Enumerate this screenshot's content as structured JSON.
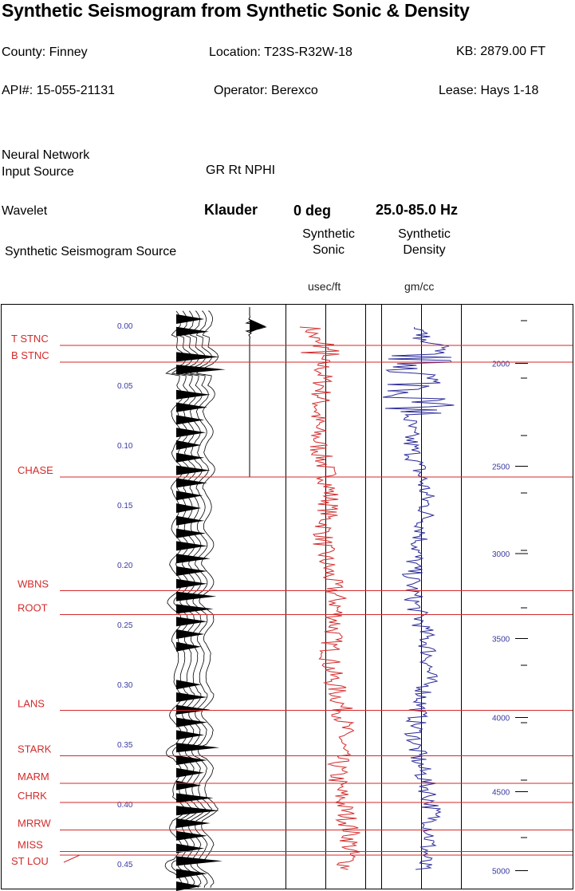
{
  "header": {
    "title": "Synthetic Seismogram from Synthetic Sonic & Density",
    "county": "County: Finney",
    "location": "Location: T23S-R32W-18",
    "kb": "KB: 2879.00 FT",
    "api": "API#: 15-055-21131",
    "operator": "Operator: Berexco",
    "lease": "Lease: Hays 1-18",
    "nn_label_1": "Neural Network",
    "nn_label_2": "Input Source",
    "nn_value": "GR Rt NPHI",
    "wavelet_label": "Wavelet",
    "wavelet_type": "Klauder",
    "wavelet_phase": "0 deg",
    "wavelet_band": "25.0-85.0 Hz",
    "source_label": "Synthetic Seismogram Source",
    "sonic_title_1": "Synthetic",
    "sonic_title_2": "Sonic",
    "density_title_1": "Synthetic",
    "density_title_2": "Density",
    "sonic_unit": "usec/ft",
    "density_unit": "gm/cc"
  },
  "colors": {
    "tops": "#d42a2a",
    "sonic": "#d42a2a",
    "density": "#2a2a9a",
    "time_labels": "#3a3aa0",
    "depth_labels": "#3a3aa0"
  },
  "chart_data": {
    "type": "line",
    "time_ticks": [
      "0.00",
      "0.05",
      "0.10",
      "0.15",
      "0.20",
      "0.25",
      "0.30",
      "0.35",
      "0.40",
      "0.45"
    ],
    "time_values": [
      0.0,
      0.05,
      0.1,
      0.15,
      0.2,
      0.25,
      0.3,
      0.35,
      0.4,
      0.45
    ],
    "depth_ticks": [
      "2000",
      "2500",
      "3000",
      "3500",
      "4000",
      "4500",
      "5000"
    ],
    "depth_times": [
      0.031,
      0.117,
      0.19,
      0.261,
      0.327,
      0.389,
      0.455
    ],
    "formation_tops": [
      {
        "name": "T STNC",
        "t": 0.016
      },
      {
        "name": "B STNC",
        "t": 0.03
      },
      {
        "name": "CHASE",
        "t": 0.126
      },
      {
        "name": "WBNS",
        "t": 0.221
      },
      {
        "name": "ROOT",
        "t": 0.241
      },
      {
        "name": "LANS",
        "t": 0.321
      },
      {
        "name": "STARK",
        "t": 0.359
      },
      {
        "name": "MARM",
        "t": 0.382
      },
      {
        "name": "CHRK",
        "t": 0.398
      },
      {
        "name": "MRRW",
        "t": 0.421
      },
      {
        "name": "MISS",
        "t": 0.439
      },
      {
        "name": "ST LOU",
        "t": 0.442
      }
    ],
    "wavelet_amplitude": [
      0.0,
      0.02,
      -0.05,
      0.1,
      -0.2,
      0.55,
      1.0,
      0.55,
      -0.2,
      0.1,
      -0.05,
      0.02,
      0.0
    ],
    "trace_amplitude": [
      0.4,
      0.55,
      -0.1,
      0.9,
      1.1,
      -0.3,
      0.6,
      0.5,
      0.4,
      0.45,
      0.3,
      0.4,
      0.6,
      0.5,
      0.35,
      0.3,
      0.4,
      0.45,
      0.5,
      0.6,
      0.5,
      0.5,
      0.8,
      0.7,
      0.5,
      0.4,
      0.3,
      0.2,
      0.2,
      0.3,
      0.5,
      0.6,
      0.5,
      0.4,
      0.9,
      0.5,
      0.4,
      0.3,
      0.7,
      0.9,
      0.6,
      0.5,
      0.4,
      1.0,
      0.5,
      0.3,
      0.4
    ]
  }
}
